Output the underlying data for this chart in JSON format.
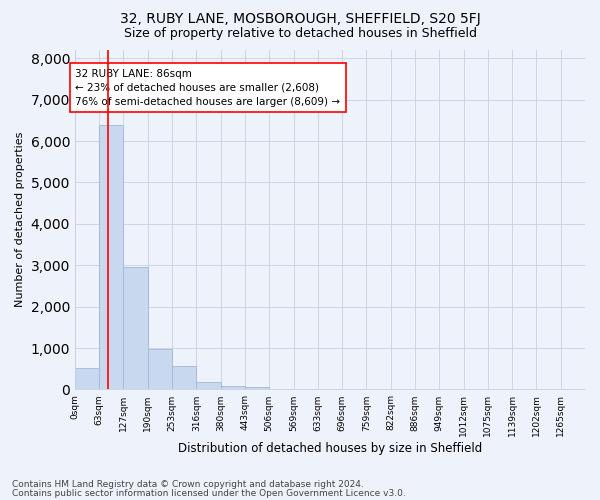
{
  "title": "32, RUBY LANE, MOSBOROUGH, SHEFFIELD, S20 5FJ",
  "subtitle": "Size of property relative to detached houses in Sheffield",
  "xlabel": "Distribution of detached houses by size in Sheffield",
  "ylabel": "Number of detached properties",
  "footnote1": "Contains HM Land Registry data © Crown copyright and database right 2024.",
  "footnote2": "Contains public sector information licensed under the Open Government Licence v3.0.",
  "bar_labels": [
    "0sqm",
    "63sqm",
    "127sqm",
    "190sqm",
    "253sqm",
    "316sqm",
    "380sqm",
    "443sqm",
    "506sqm",
    "569sqm",
    "633sqm",
    "696sqm",
    "759sqm",
    "822sqm",
    "886sqm",
    "949sqm",
    "1012sqm",
    "1075sqm",
    "1139sqm",
    "1202sqm",
    "1265sqm"
  ],
  "bar_values": [
    530,
    6400,
    2950,
    970,
    560,
    190,
    80,
    50,
    0,
    0,
    0,
    0,
    0,
    0,
    0,
    0,
    0,
    0,
    0,
    0,
    0
  ],
  "bar_color": "#c8d8ee",
  "bar_edge_color": "#a0b8d8",
  "annotation_line1": "32 RUBY LANE: 86sqm",
  "annotation_line2": "← 23% of detached houses are smaller (2,608)",
  "annotation_line3": "76% of semi-detached houses are larger (8,609) →",
  "property_size_sqm": 86,
  "ylim_max": 8000,
  "yticks": [
    0,
    1000,
    2000,
    3000,
    4000,
    5000,
    6000,
    7000,
    8000
  ],
  "bin_width": 63,
  "num_bins": 21,
  "background_color": "#eef2fa",
  "plot_bg_color": "#eef2fa",
  "box_face_color": "#ffffff",
  "grid_color": "#c8d0e0",
  "title_fontsize": 10,
  "subtitle_fontsize": 9,
  "ylabel_fontsize": 8,
  "xlabel_fontsize": 8.5,
  "tick_fontsize": 6.5,
  "annotation_fontsize": 7.5,
  "footnote_fontsize": 6.5
}
